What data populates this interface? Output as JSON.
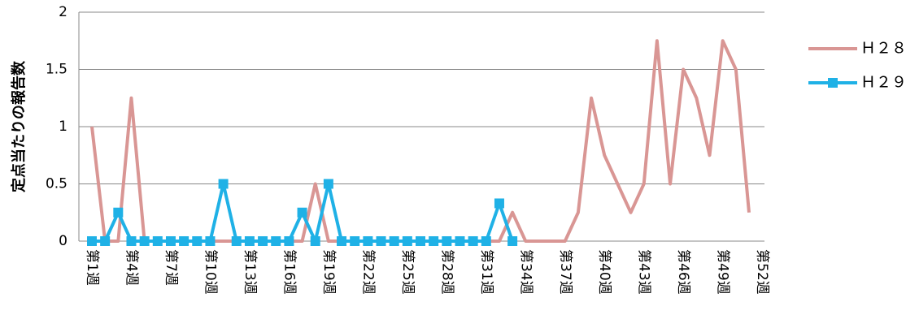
{
  "chart_data": {
    "type": "line",
    "y_label": "定点当たりの報告数",
    "categories": [
      "第1週",
      null,
      null,
      "第4週",
      null,
      null,
      "第7週",
      null,
      null,
      "第10週",
      null,
      null,
      "第13週",
      null,
      null,
      "第16週",
      null,
      null,
      "第19週",
      null,
      null,
      "第22週",
      null,
      null,
      "第25週",
      null,
      null,
      "第28週",
      null,
      null,
      "第31週",
      null,
      null,
      "第34週",
      null,
      null,
      "第37週",
      null,
      null,
      "第40週",
      null,
      null,
      "第43週",
      null,
      null,
      "第46週",
      null,
      null,
      "第49週",
      null,
      null,
      "第52週"
    ],
    "series": [
      {
        "name": "Ｈ２８",
        "color": "#d99694",
        "marker": "none",
        "values": [
          1,
          0,
          0,
          1.25,
          0,
          0,
          0,
          0,
          0,
          0,
          0,
          0,
          0,
          0,
          0,
          0,
          0,
          0.5,
          0,
          0,
          0,
          0,
          0,
          0,
          0,
          0,
          0,
          0,
          0,
          0,
          0,
          0,
          0.25,
          0,
          0,
          0,
          0,
          0.25,
          1.25,
          0.75,
          0.5,
          0.25,
          0.5,
          1.75,
          0.5,
          1.5,
          1.25,
          0.75,
          1.75,
          1.5,
          0.25,
          null
        ]
      },
      {
        "name": "Ｈ２９",
        "color": "#1fb1e6",
        "marker": "square",
        "values": [
          0,
          0,
          0.25,
          0,
          0,
          0,
          0,
          0,
          0,
          0,
          0.5,
          0,
          0,
          0,
          0,
          0,
          0.25,
          0,
          0.5,
          0,
          0,
          0,
          0,
          0,
          0,
          0,
          0,
          0,
          0,
          0,
          0,
          0.33,
          0,
          null,
          null,
          null,
          null,
          null,
          null,
          null,
          null,
          null,
          null,
          null,
          null,
          null,
          null,
          null,
          null,
          null,
          null,
          null
        ]
      }
    ],
    "ylim": [
      0,
      2
    ],
    "yticks": [
      0,
      0.5,
      1,
      1.5,
      2
    ],
    "grid": true,
    "legend": "right"
  }
}
